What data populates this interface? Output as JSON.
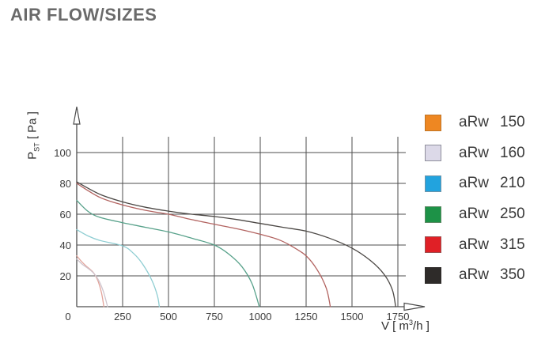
{
  "title": "AIR FLOW/SIZES",
  "axes": {
    "y_label": {
      "symbol": "P",
      "subscript": "ST",
      "unit": " [ Pa ]"
    },
    "x_label": {
      "prefix": "V [ m",
      "superscript": "3",
      "suffix": "/h ]"
    }
  },
  "colors": {
    "title": "#6a6a6a",
    "axis_text": "#3b3b3b",
    "grid": "#4d4d4d",
    "background": "#ffffff"
  },
  "chart_data": {
    "type": "line",
    "title": "AIR FLOW/SIZES",
    "xlabel": "V [ m³/h ]",
    "ylabel": "P_ST [ Pa ]",
    "x_ticks": [
      0,
      250,
      500,
      750,
      1000,
      1250,
      1500,
      1750
    ],
    "y_ticks": [
      20,
      40,
      60,
      80,
      100
    ],
    "xlim": [
      0,
      1750
    ],
    "ylim": [
      0,
      100
    ],
    "grid": true,
    "legend_position": "right",
    "series": [
      {
        "name": "aRw 150",
        "model": "aRw",
        "size": "150",
        "legend_color": "#ee8722",
        "legend_border": "#bf7426",
        "curve_color": "#e2a39a",
        "points": [
          [
            0,
            33
          ],
          [
            25,
            29.5
          ],
          [
            50,
            26.5
          ],
          [
            75,
            24
          ],
          [
            95,
            21.5
          ],
          [
            115,
            17
          ],
          [
            135,
            9
          ],
          [
            148,
            0
          ]
        ]
      },
      {
        "name": "aRw 160",
        "model": "aRw",
        "size": "160",
        "legend_color": "#dcd9e8",
        "legend_border": "#8f8f9c",
        "curve_color": "#cfc5ce",
        "points": [
          [
            0,
            31
          ],
          [
            30,
            27.5
          ],
          [
            60,
            25
          ],
          [
            90,
            22
          ],
          [
            118,
            17.5
          ],
          [
            145,
            10
          ],
          [
            168,
            0
          ]
        ]
      },
      {
        "name": "aRw 210",
        "model": "aRw",
        "size": "210",
        "legend_color": "#22a3de",
        "legend_border": "#6e93a8",
        "curve_color": "#8ecdd2",
        "points": [
          [
            0,
            50
          ],
          [
            60,
            46
          ],
          [
            125,
            43
          ],
          [
            250,
            39.5
          ],
          [
            310,
            34.5
          ],
          [
            360,
            27.5
          ],
          [
            410,
            17
          ],
          [
            440,
            7
          ],
          [
            450,
            0
          ]
        ]
      },
      {
        "name": "aRw 250",
        "model": "aRw",
        "size": "250",
        "legend_color": "#1d9247",
        "legend_border": "#5c8a64",
        "curve_color": "#57a18a",
        "points": [
          [
            0,
            69
          ],
          [
            60,
            62
          ],
          [
            125,
            58
          ],
          [
            250,
            54.5
          ],
          [
            375,
            51.5
          ],
          [
            500,
            48.5
          ],
          [
            625,
            44.5
          ],
          [
            750,
            40
          ],
          [
            830,
            34
          ],
          [
            900,
            26
          ],
          [
            955,
            15
          ],
          [
            995,
            0
          ]
        ]
      },
      {
        "name": "aRw 315",
        "model": "aRw",
        "size": "315",
        "legend_color": "#e02026",
        "legend_border": "#9c5050",
        "curve_color": "#b26360",
        "points": [
          [
            0,
            80
          ],
          [
            125,
            71
          ],
          [
            250,
            66
          ],
          [
            375,
            62.5
          ],
          [
            500,
            60
          ],
          [
            625,
            56.5
          ],
          [
            750,
            53.5
          ],
          [
            875,
            50.5
          ],
          [
            1000,
            47
          ],
          [
            1100,
            43.5
          ],
          [
            1175,
            39
          ],
          [
            1250,
            33
          ],
          [
            1310,
            24
          ],
          [
            1360,
            12
          ],
          [
            1382,
            0
          ]
        ]
      },
      {
        "name": "aRw 350",
        "model": "aRw",
        "size": "350",
        "legend_color": "#2e2b29",
        "legend_border": "#2e2b29",
        "curve_color": "#4c4845",
        "points": [
          [
            0,
            81
          ],
          [
            125,
            73
          ],
          [
            250,
            68
          ],
          [
            375,
            64.5
          ],
          [
            500,
            62
          ],
          [
            625,
            60
          ],
          [
            750,
            58.5
          ],
          [
            875,
            56.5
          ],
          [
            1000,
            54
          ],
          [
            1125,
            51.5
          ],
          [
            1250,
            49
          ],
          [
            1375,
            44.5
          ],
          [
            1500,
            38
          ],
          [
            1600,
            30
          ],
          [
            1675,
            21
          ],
          [
            1720,
            11
          ],
          [
            1738,
            0
          ]
        ]
      }
    ]
  }
}
